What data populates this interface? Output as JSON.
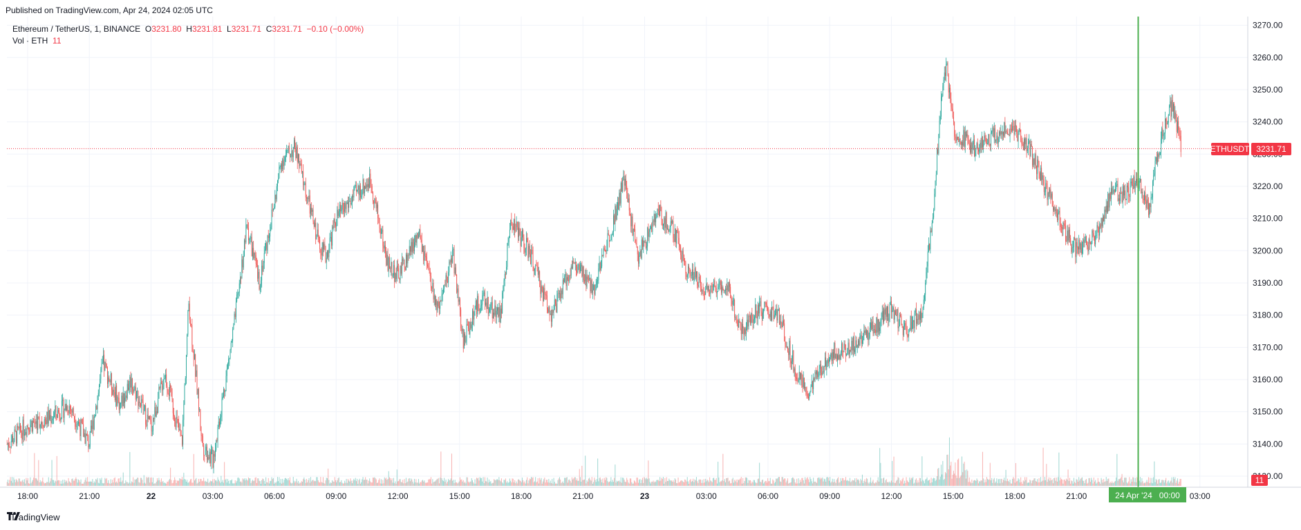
{
  "header": {
    "published": "Published on TradingView.com, Apr 24, 2024 02:05 UTC"
  },
  "legend": {
    "symbol": "Ethereum / TetherUS, 1, BINANCE",
    "o_label": "O",
    "o": "3231.80",
    "h_label": "H",
    "h": "3231.81",
    "l_label": "L",
    "l": "3231.71",
    "c_label": "C",
    "c": "3231.71",
    "change": "−0.10 (−0.00%)",
    "vol_label": "Vol · ETH",
    "vol": "11"
  },
  "price_tag": {
    "symbol": "ETHUSDT",
    "value": "3231.71"
  },
  "volume_tag": "11",
  "crosshair_date": "24 Apr '24   00:00",
  "footer": {
    "brand": "TradingView"
  },
  "colors": {
    "up": "#26a69a",
    "down": "#ef5350",
    "accent": "#f23645",
    "crosshair": "#4caf50",
    "grid": "#f0f3fa",
    "axis_text": "#131722"
  },
  "chart_data": {
    "type": "candlestick",
    "symbol": "ETHUSDT",
    "timeframe": "1",
    "ylim": [
      3125,
      3272
    ],
    "y_ticks": [
      "3130.00",
      "3140.00",
      "3150.00",
      "3160.00",
      "3170.00",
      "3180.00",
      "3190.00",
      "3200.00",
      "3210.00",
      "3220.00",
      "3230.00",
      "3240.00",
      "3250.00",
      "3260.00",
      "3270.00"
    ],
    "x_ticks": [
      "18:00",
      "21:00",
      "22",
      "03:00",
      "06:00",
      "09:00",
      "12:00",
      "15:00",
      "18:00",
      "21:00",
      "23",
      "03:00",
      "06:00",
      "09:00",
      "12:00",
      "15:00",
      "18:00",
      "21:00",
      "00:00",
      "03:00"
    ],
    "last_price": 3231.71,
    "path": [
      [
        "2024-04-21 17:00",
        3140
      ],
      [
        "2024-04-21 18:00",
        3146
      ],
      [
        "2024-04-21 19:00",
        3148
      ],
      [
        "2024-04-21 20:00",
        3152
      ],
      [
        "2024-04-21 21:00",
        3140
      ],
      [
        "2024-04-21 21:40",
        3165
      ],
      [
        "2024-04-21 22:30",
        3152
      ],
      [
        "2024-04-21 23:00",
        3160
      ],
      [
        "2024-04-22 00:00",
        3145
      ],
      [
        "2024-04-22 00:40",
        3162
      ],
      [
        "2024-04-22 01:30",
        3140
      ],
      [
        "2024-04-22 01:50",
        3184
      ],
      [
        "2024-04-22 02:30",
        3140
      ],
      [
        "2024-04-22 03:00",
        3135
      ],
      [
        "2024-04-22 04:00",
        3175
      ],
      [
        "2024-04-22 04:40",
        3208
      ],
      [
        "2024-04-22 05:15",
        3190
      ],
      [
        "2024-04-22 06:00",
        3215
      ],
      [
        "2024-04-22 06:20",
        3228
      ],
      [
        "2024-04-22 07:00",
        3232
      ],
      [
        "2024-04-22 08:00",
        3206
      ],
      [
        "2024-04-22 08:30",
        3198
      ],
      [
        "2024-04-22 09:00",
        3210
      ],
      [
        "2024-04-22 10:00",
        3218
      ],
      [
        "2024-04-22 10:40",
        3222
      ],
      [
        "2024-04-22 11:30",
        3196
      ],
      [
        "2024-04-22 12:00",
        3192
      ],
      [
        "2024-04-22 13:00",
        3205
      ],
      [
        "2024-04-22 14:00",
        3180
      ],
      [
        "2024-04-22 14:40",
        3200
      ],
      [
        "2024-04-22 15:10",
        3172
      ],
      [
        "2024-04-22 16:00",
        3185
      ],
      [
        "2024-04-22 17:00",
        3180
      ],
      [
        "2024-04-22 17:30",
        3210
      ],
      [
        "2024-04-22 18:30",
        3198
      ],
      [
        "2024-04-22 19:00",
        3188
      ],
      [
        "2024-04-22 19:30",
        3180
      ],
      [
        "2024-04-22 20:30",
        3196
      ],
      [
        "2024-04-22 21:30",
        3188
      ],
      [
        "2024-04-22 22:30",
        3210
      ],
      [
        "2024-04-22 23:00",
        3222
      ],
      [
        "2024-04-22 23:40",
        3198
      ],
      [
        "2024-04-23 00:40",
        3212
      ],
      [
        "2024-04-23 01:30",
        3205
      ],
      [
        "2024-04-23 02:00",
        3195
      ],
      [
        "2024-04-23 03:00",
        3188
      ],
      [
        "2024-04-23 04:00",
        3190
      ],
      [
        "2024-04-23 04:40",
        3175
      ],
      [
        "2024-04-23 05:30",
        3182
      ],
      [
        "2024-04-23 06:30",
        3180
      ],
      [
        "2024-04-23 07:30",
        3160
      ],
      [
        "2024-04-23 08:00",
        3156
      ],
      [
        "2024-04-23 09:00",
        3168
      ],
      [
        "2024-04-23 10:00",
        3170
      ],
      [
        "2024-04-23 11:00",
        3175
      ],
      [
        "2024-04-23 12:00",
        3182
      ],
      [
        "2024-04-23 12:40",
        3175
      ],
      [
        "2024-04-23 13:30",
        3182
      ],
      [
        "2024-04-23 14:00",
        3210
      ],
      [
        "2024-04-23 14:20",
        3240
      ],
      [
        "2024-04-23 14:40",
        3258
      ],
      [
        "2024-04-23 15:00",
        3238
      ],
      [
        "2024-04-23 16:00",
        3232
      ],
      [
        "2024-04-23 17:00",
        3236
      ],
      [
        "2024-04-23 18:00",
        3238
      ],
      [
        "2024-04-23 18:40",
        3232
      ],
      [
        "2024-04-23 19:30",
        3220
      ],
      [
        "2024-04-23 20:30",
        3205
      ],
      [
        "2024-04-23 21:00",
        3200
      ],
      [
        "2024-04-23 22:00",
        3205
      ],
      [
        "2024-04-23 22:40",
        3218
      ],
      [
        "2024-04-23 23:30",
        3218
      ],
      [
        "2024-04-24 00:00",
        3222
      ],
      [
        "2024-04-24 00:30",
        3212
      ],
      [
        "2024-04-24 01:00",
        3232
      ],
      [
        "2024-04-24 01:40",
        3246
      ],
      [
        "2024-04-24 02:05",
        3231.71
      ]
    ]
  }
}
